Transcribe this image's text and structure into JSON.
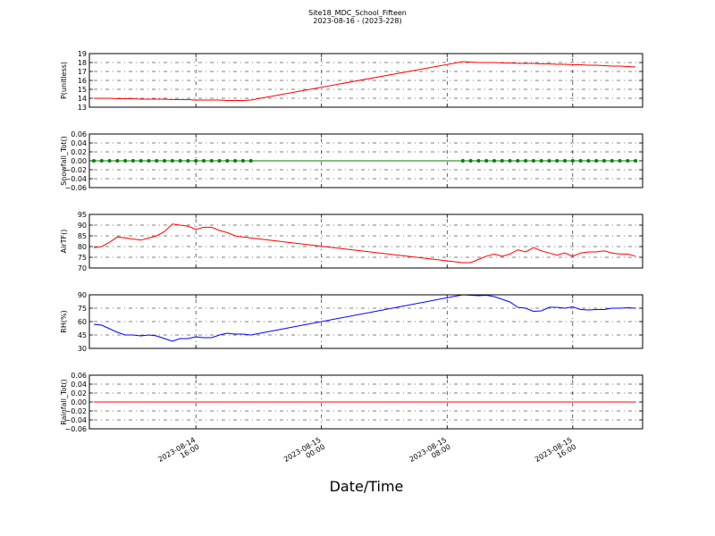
{
  "chart_data": [
    {
      "type": "line",
      "title": "Site18_MDC_School_Fifteen",
      "subtitle": "2023-08-16 - (2023-228)",
      "ylabel": "P(unitless)",
      "x": [
        "2023-08-14 09:30",
        "2023-08-14 10:00",
        "2023-08-14 10:30",
        "2023-08-14 11:00",
        "2023-08-14 11:30",
        "2023-08-14 12:00",
        "2023-08-14 12:30",
        "2023-08-14 13:00",
        "2023-08-14 13:30",
        "2023-08-14 14:00",
        "2023-08-14 14:30",
        "2023-08-14 15:00",
        "2023-08-14 15:30",
        "2023-08-14 16:00",
        "2023-08-14 16:30",
        "2023-08-14 17:00",
        "2023-08-14 17:30",
        "2023-08-14 18:00",
        "2023-08-14 18:30",
        "2023-08-14 19:00",
        "2023-08-14 19:30",
        "2023-08-15 09:00",
        "2023-08-15 09:30",
        "2023-08-15 10:00",
        "2023-08-15 10:30",
        "2023-08-15 11:00",
        "2023-08-15 11:30",
        "2023-08-15 12:00",
        "2023-08-15 12:30",
        "2023-08-15 13:00",
        "2023-08-15 13:30",
        "2023-08-15 14:00",
        "2023-08-15 14:30",
        "2023-08-15 15:00",
        "2023-08-15 15:30",
        "2023-08-15 16:00",
        "2023-08-15 16:30",
        "2023-08-15 17:00",
        "2023-08-15 17:30",
        "2023-08-15 18:00",
        "2023-08-15 18:30",
        "2023-08-15 19:00",
        "2023-08-15 19:30",
        "2023-08-15 20:00"
      ],
      "series": [
        {
          "color": "#ff0000",
          "values": [
            14.0,
            14.0,
            14.0,
            13.95,
            13.95,
            13.95,
            13.9,
            13.9,
            13.9,
            13.9,
            13.85,
            13.85,
            13.85,
            13.8,
            13.8,
            13.8,
            13.8,
            13.75,
            13.75,
            13.75,
            13.8,
            18.1,
            18.05,
            18.0,
            18.0,
            18.0,
            17.95,
            17.95,
            17.9,
            17.9,
            17.9,
            17.85,
            17.85,
            17.8,
            17.8,
            17.75,
            17.75,
            17.7,
            17.7,
            17.65,
            17.6,
            17.6,
            17.55,
            17.5
          ]
        }
      ],
      "xlim": [
        "2023-08-14 09:13",
        "2023-08-15 20:27"
      ],
      "ylim": [
        13,
        19
      ],
      "yticks": [
        13,
        14,
        15,
        16,
        17,
        18,
        19
      ],
      "grid": true
    },
    {
      "type": "line",
      "ylabel": "Snowfall_Tot()",
      "x": [
        "2023-08-14 09:30",
        "2023-08-14 10:00",
        "2023-08-14 10:30",
        "2023-08-14 11:00",
        "2023-08-14 11:30",
        "2023-08-14 12:00",
        "2023-08-14 12:30",
        "2023-08-14 13:00",
        "2023-08-14 13:30",
        "2023-08-14 14:00",
        "2023-08-14 14:30",
        "2023-08-14 15:00",
        "2023-08-14 15:30",
        "2023-08-14 16:00",
        "2023-08-14 16:30",
        "2023-08-14 17:00",
        "2023-08-14 17:30",
        "2023-08-14 18:00",
        "2023-08-14 18:30",
        "2023-08-14 19:00",
        "2023-08-14 19:30",
        "2023-08-15 09:00",
        "2023-08-15 09:30",
        "2023-08-15 10:00",
        "2023-08-15 10:30",
        "2023-08-15 11:00",
        "2023-08-15 11:30",
        "2023-08-15 12:00",
        "2023-08-15 12:30",
        "2023-08-15 13:00",
        "2023-08-15 13:30",
        "2023-08-15 14:00",
        "2023-08-15 14:30",
        "2023-08-15 15:00",
        "2023-08-15 15:30",
        "2023-08-15 16:00",
        "2023-08-15 16:30",
        "2023-08-15 17:00",
        "2023-08-15 17:30",
        "2023-08-15 18:00",
        "2023-08-15 18:30",
        "2023-08-15 19:00",
        "2023-08-15 19:30",
        "2023-08-15 20:00"
      ],
      "series": [
        {
          "color": "#008000",
          "marker": true,
          "values": [
            0,
            0,
            0,
            0,
            0,
            0,
            0,
            0,
            0,
            0,
            0,
            0,
            0,
            0,
            0,
            0,
            0,
            0,
            0,
            0,
            0,
            0,
            0,
            0,
            0,
            0,
            0,
            0,
            0,
            0,
            0,
            0,
            0,
            0,
            0,
            0,
            0,
            0,
            0,
            0,
            0,
            0,
            0,
            0
          ]
        }
      ],
      "xlim": [
        "2023-08-14 09:13",
        "2023-08-15 20:27"
      ],
      "ylim": [
        -0.06,
        0.06
      ],
      "yticks": [
        {
          "value": -0.06,
          "label": "−0.06"
        },
        {
          "value": -0.04,
          "label": "−0.04"
        },
        {
          "value": -0.02,
          "label": "−0.02"
        },
        {
          "value": 0,
          "label": "0.00"
        },
        0.02,
        0.04,
        0.06
      ],
      "grid": true
    },
    {
      "type": "line",
      "ylabel": "AirTF()",
      "x": [
        "2023-08-14 09:30",
        "2023-08-14 10:00",
        "2023-08-14 10:30",
        "2023-08-14 11:00",
        "2023-08-14 11:30",
        "2023-08-14 12:00",
        "2023-08-14 12:30",
        "2023-08-14 13:00",
        "2023-08-14 13:30",
        "2023-08-14 14:00",
        "2023-08-14 14:30",
        "2023-08-14 15:00",
        "2023-08-14 15:30",
        "2023-08-14 16:00",
        "2023-08-14 16:30",
        "2023-08-14 17:00",
        "2023-08-14 17:30",
        "2023-08-14 18:00",
        "2023-08-14 18:30",
        "2023-08-14 19:00",
        "2023-08-14 19:30",
        "2023-08-15 09:00",
        "2023-08-15 09:30",
        "2023-08-15 10:00",
        "2023-08-15 10:30",
        "2023-08-15 11:00",
        "2023-08-15 11:30",
        "2023-08-15 12:00",
        "2023-08-15 12:30",
        "2023-08-15 13:00",
        "2023-08-15 13:30",
        "2023-08-15 14:00",
        "2023-08-15 14:30",
        "2023-08-15 15:00",
        "2023-08-15 15:30",
        "2023-08-15 16:00",
        "2023-08-15 16:30",
        "2023-08-15 17:00",
        "2023-08-15 17:30",
        "2023-08-15 18:00",
        "2023-08-15 18:30",
        "2023-08-15 19:00",
        "2023-08-15 19:30",
        "2023-08-15 20:00"
      ],
      "series": [
        {
          "color": "#ff0000",
          "values": [
            79.5,
            80,
            82,
            84.5,
            84,
            83.5,
            83,
            84,
            85,
            87,
            90.5,
            90,
            89.5,
            88,
            89,
            89,
            87.5,
            86.5,
            85,
            84.5,
            84,
            72.5,
            72.5,
            74,
            75.5,
            76.5,
            75.5,
            76.5,
            78.5,
            77.5,
            79.5,
            78,
            77,
            76,
            77,
            75.5,
            77,
            77.5,
            77.5,
            78,
            77,
            76.5,
            76.5,
            75.5
          ]
        }
      ],
      "xlim": [
        "2023-08-14 09:13",
        "2023-08-15 20:27"
      ],
      "ylim": [
        70,
        95
      ],
      "yticks": [
        70,
        75,
        80,
        85,
        90,
        95
      ],
      "grid": true
    },
    {
      "type": "line",
      "ylabel": "RH(%)",
      "x": [
        "2023-08-14 09:30",
        "2023-08-14 10:00",
        "2023-08-14 10:30",
        "2023-08-14 11:00",
        "2023-08-14 11:30",
        "2023-08-14 12:00",
        "2023-08-14 12:30",
        "2023-08-14 13:00",
        "2023-08-14 13:30",
        "2023-08-14 14:00",
        "2023-08-14 14:30",
        "2023-08-14 15:00",
        "2023-08-14 15:30",
        "2023-08-14 16:00",
        "2023-08-14 16:30",
        "2023-08-14 17:00",
        "2023-08-14 17:30",
        "2023-08-14 18:00",
        "2023-08-14 18:30",
        "2023-08-14 19:00",
        "2023-08-14 19:30",
        "2023-08-15 09:00",
        "2023-08-15 09:30",
        "2023-08-15 10:00",
        "2023-08-15 10:30",
        "2023-08-15 11:00",
        "2023-08-15 11:30",
        "2023-08-15 12:00",
        "2023-08-15 12:30",
        "2023-08-15 13:00",
        "2023-08-15 13:30",
        "2023-08-15 14:00",
        "2023-08-15 14:30",
        "2023-08-15 15:00",
        "2023-08-15 15:30",
        "2023-08-15 16:00",
        "2023-08-15 16:30",
        "2023-08-15 17:00",
        "2023-08-15 17:30",
        "2023-08-15 18:00",
        "2023-08-15 18:30",
        "2023-08-15 19:00",
        "2023-08-15 19:30",
        "2023-08-15 20:00"
      ],
      "series": [
        {
          "color": "#0000ff",
          "values": [
            57,
            56,
            52,
            48,
            45,
            45,
            44,
            45,
            44,
            41,
            38,
            41,
            41,
            43,
            42,
            42,
            45,
            47,
            46,
            46,
            45,
            90,
            89.5,
            89,
            89.5,
            88,
            85,
            82,
            76,
            75,
            71.5,
            72,
            76,
            76,
            75,
            76.5,
            73.5,
            73,
            73.5,
            73.5,
            75,
            75,
            75.5,
            75
          ]
        }
      ],
      "xlim": [
        "2023-08-14 09:13",
        "2023-08-15 20:27"
      ],
      "ylim": [
        30,
        90
      ],
      "yticks": [
        30,
        45,
        60,
        75,
        90
      ],
      "grid": true
    },
    {
      "type": "line",
      "ylabel": "Rainfall_Tot()",
      "xlabel": "Date/Time",
      "x": [
        "2023-08-14 09:30",
        "2023-08-14 10:00",
        "2023-08-14 10:30",
        "2023-08-14 11:00",
        "2023-08-14 11:30",
        "2023-08-14 12:00",
        "2023-08-14 12:30",
        "2023-08-14 13:00",
        "2023-08-14 13:30",
        "2023-08-14 14:00",
        "2023-08-14 14:30",
        "2023-08-14 15:00",
        "2023-08-14 15:30",
        "2023-08-14 16:00",
        "2023-08-14 16:30",
        "2023-08-14 17:00",
        "2023-08-14 17:30",
        "2023-08-14 18:00",
        "2023-08-14 18:30",
        "2023-08-14 19:00",
        "2023-08-14 19:30",
        "2023-08-15 09:00",
        "2023-08-15 09:30",
        "2023-08-15 10:00",
        "2023-08-15 10:30",
        "2023-08-15 11:00",
        "2023-08-15 11:30",
        "2023-08-15 12:00",
        "2023-08-15 12:30",
        "2023-08-15 13:00",
        "2023-08-15 13:30",
        "2023-08-15 14:00",
        "2023-08-15 14:30",
        "2023-08-15 15:00",
        "2023-08-15 15:30",
        "2023-08-15 16:00",
        "2023-08-15 16:30",
        "2023-08-15 17:00",
        "2023-08-15 17:30",
        "2023-08-15 18:00",
        "2023-08-15 18:30",
        "2023-08-15 19:00",
        "2023-08-15 19:30",
        "2023-08-15 20:00"
      ],
      "series": [
        {
          "color": "#ff0000",
          "values": [
            0,
            0,
            0,
            0,
            0,
            0,
            0,
            0,
            0,
            0,
            0,
            0,
            0,
            0,
            0,
            0,
            0,
            0,
            0,
            0,
            0,
            0,
            0,
            0,
            0,
            0,
            0,
            0,
            0,
            0,
            0,
            0,
            0,
            0,
            0,
            0,
            0,
            0,
            0,
            0,
            0,
            0,
            0,
            0
          ]
        }
      ],
      "xlim": [
        "2023-08-14 09:13",
        "2023-08-15 20:27"
      ],
      "ylim": [
        -0.06,
        0.06
      ],
      "yticks": [
        {
          "value": -0.06,
          "label": "−0.06"
        },
        {
          "value": -0.04,
          "label": "−0.04"
        },
        {
          "value": -0.02,
          "label": "−0.02"
        },
        {
          "value": 0,
          "label": "0.00"
        },
        0.02,
        0.04,
        0.06
      ],
      "xticks": [
        {
          "value": "2023-08-14 16:00",
          "label": "2023-08-14\n16:00"
        },
        {
          "value": "2023-08-15 00:00",
          "label": "2023-08-15\n00:00"
        },
        {
          "value": "2023-08-15 08:00",
          "label": "2023-08-15\n08:00"
        },
        {
          "value": "2023-08-15 16:00",
          "label": "2023-08-15\n16:00"
        }
      ],
      "grid": true
    }
  ]
}
